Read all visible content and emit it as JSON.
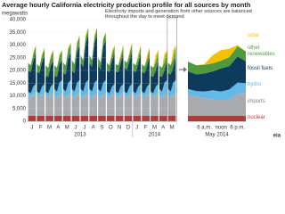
{
  "chart_data": [
    {
      "type": "area",
      "stacked": true,
      "title": "Average hourly California electricity production profile for all sources by month",
      "y_label": "megawatts",
      "annotation": "Electricity imports and generation from other sources are balanced throughout the day to meet demand",
      "year_labels": [
        "2013",
        "2014"
      ],
      "source_logo": "eia",
      "categories": [
        null,
        "J",
        null,
        null,
        null,
        "F",
        null,
        null,
        null,
        "M",
        null,
        null,
        null,
        "A",
        null,
        null,
        null,
        "M",
        null,
        null,
        null,
        "J",
        null,
        null,
        null,
        "J",
        null,
        null,
        null,
        "A",
        null,
        null,
        null,
        "S",
        null,
        null,
        null,
        "O",
        null,
        null,
        null,
        "N",
        null,
        null,
        null,
        "D",
        null,
        null,
        null,
        "J",
        null,
        null,
        null,
        "F",
        null,
        null,
        null,
        "M",
        null,
        null,
        null,
        "A",
        null,
        null,
        null,
        "M",
        null,
        null
      ],
      "series": [
        {
          "color": "#b23a3a",
          "values": [
            2200,
            2200,
            2200,
            2200,
            2200,
            2200,
            2200,
            2200,
            2200,
            2200,
            2200,
            2200,
            2200,
            2200,
            2200,
            2200,
            2200,
            2200,
            2200,
            2200,
            2200,
            2200,
            2200,
            2200,
            2200,
            2200,
            2200,
            2200,
            2200,
            2200,
            2200,
            2200,
            2200,
            2200,
            2200,
            2200,
            2200,
            2200,
            2200,
            2200,
            2200,
            2200,
            2200,
            2200,
            2200,
            2200,
            2200,
            2200,
            2200,
            2200,
            2200,
            2200,
            2200,
            2200,
            2200,
            2200,
            2200,
            2200,
            2200,
            2200,
            2200,
            2200,
            2200,
            2200,
            2200,
            2200,
            2200,
            2200
          ]
        },
        {
          "color": "#a8aaad",
          "values": [
            7500,
            7000,
            8500,
            9000,
            7500,
            7000,
            8500,
            9000,
            7500,
            7000,
            8500,
            9000,
            7500,
            7000,
            8500,
            9000,
            7500,
            7000,
            8500,
            9000,
            7500,
            7000,
            8500,
            9000,
            7500,
            7000,
            8500,
            9000,
            7500,
            7000,
            8500,
            9000,
            7500,
            7000,
            8500,
            9000,
            7500,
            7000,
            8500,
            9000,
            7500,
            7000,
            8500,
            9000,
            7500,
            7000,
            8500,
            9000,
            7500,
            7000,
            8500,
            9000,
            7500,
            7000,
            8500,
            9000,
            7500,
            7000,
            8500,
            9000,
            7500,
            7000,
            8500,
            9000,
            7500,
            7000,
            8500,
            9000
          ]
        },
        {
          "color": "#62b8e6",
          "values": [
            2000,
            1800,
            3000,
            3500,
            2000,
            1800,
            3000,
            3500,
            2000,
            1800,
            3000,
            3500,
            3000,
            2500,
            4500,
            5000,
            3000,
            2500,
            4500,
            5000,
            3000,
            2500,
            4500,
            5000,
            3000,
            2500,
            4500,
            5000,
            3000,
            2500,
            4500,
            5000,
            3000,
            2500,
            4500,
            5000,
            2000,
            1800,
            3000,
            3500,
            2000,
            1800,
            3000,
            3500,
            2000,
            1800,
            3000,
            3500,
            2000,
            1800,
            3000,
            3500,
            2000,
            1800,
            3000,
            3500,
            2000,
            1800,
            3000,
            3500,
            3000,
            2500,
            4500,
            5000,
            3000,
            2500,
            4500,
            5000
          ]
        },
        {
          "color": "#0d3b5e",
          "values": [
            8300,
            8300,
            10000,
            12100,
            7800,
            7800,
            9500,
            11100,
            6300,
            6400,
            8300,
            9100,
            5300,
            5700,
            7300,
            7600,
            6300,
            6700,
            9800,
            10600,
            7300,
            7200,
            11800,
            13600,
            10300,
            9600,
            15500,
            17600,
            10300,
            9600,
            15500,
            17600,
            9300,
            8600,
            14500,
            15600,
            8300,
            8300,
            10100,
            12100,
            7800,
            8300,
            9100,
            12100,
            9300,
            9300,
            10100,
            13100,
            8300,
            8300,
            8800,
            12100,
            7800,
            7800,
            7800,
            11000,
            6300,
            6400,
            6300,
            8900,
            5300,
            5700,
            4900,
            7300,
            6300,
            6700,
            6100,
            9300
          ]
        },
        {
          "color": "#4e9a3c",
          "values": [
            3000,
            2700,
            2500,
            3000,
            3000,
            2700,
            2500,
            3000,
            4000,
            3600,
            3200,
            4000,
            4000,
            3600,
            3200,
            4000,
            4000,
            3600,
            3200,
            4000,
            4000,
            3600,
            3200,
            4000,
            3000,
            2700,
            2500,
            3000,
            3000,
            2700,
            2500,
            3000,
            3000,
            2700,
            2500,
            3000,
            3000,
            2700,
            2500,
            3000,
            3000,
            2700,
            2500,
            3000,
            3000,
            2700,
            2500,
            3000,
            3000,
            2700,
            2500,
            3000,
            3000,
            2700,
            2500,
            3000,
            4000,
            3600,
            3200,
            4000,
            4000,
            3600,
            3200,
            4000,
            4000,
            3600,
            3200,
            4000
          ]
        },
        {
          "color": "#f2c200",
          "values": [
            0,
            0,
            800,
            200,
            0,
            0,
            800,
            200,
            0,
            0,
            800,
            200,
            0,
            0,
            800,
            200,
            0,
            0,
            800,
            200,
            0,
            0,
            800,
            200,
            0,
            0,
            800,
            200,
            0,
            0,
            800,
            200,
            0,
            0,
            800,
            200,
            0,
            0,
            1200,
            200,
            0,
            0,
            1200,
            200,
            0,
            0,
            1200,
            200,
            0,
            0,
            1500,
            200,
            0,
            0,
            2000,
            300,
            0,
            0,
            2800,
            400,
            0,
            0,
            3200,
            500,
            0,
            0,
            3500,
            500
          ]
        }
      ],
      "ylim": [
        0,
        40000
      ],
      "yticks": [
        0,
        {
          "value": 5000,
          "label": "5,000"
        },
        {
          "value": 10000,
          "label": "10,000"
        },
        {
          "value": 15000,
          "label": "15,000"
        },
        {
          "value": 20000,
          "label": "20,000"
        },
        {
          "value": 25000,
          "label": "25,000"
        },
        {
          "value": 30000,
          "label": "30,000"
        },
        {
          "value": 35000,
          "label": "35,000"
        },
        {
          "value": 40000,
          "label": "40,000"
        }
      ],
      "grid": true
    },
    {
      "type": "area",
      "stacked": true,
      "x_label": "May 2014",
      "categories": [
        null,
        null,
        "6 a.m.",
        null,
        "noon",
        null,
        "6 p.m.",
        null
      ],
      "series": [
        {
          "name": "nuclear",
          "color": "#b23a3a",
          "values": [
            2200,
            2200,
            2200,
            2200,
            2200,
            2200,
            2200,
            2200
          ]
        },
        {
          "name": "imports",
          "color": "#a8aaad",
          "values": [
            8000,
            7500,
            7000,
            6500,
            6000,
            6500,
            8500,
            9000
          ]
        },
        {
          "name": "hydro",
          "color": "#62b8e6",
          "values": [
            2500,
            2200,
            2500,
            3500,
            3500,
            3800,
            4500,
            3800
          ]
        },
        {
          "name": "fossil fuels",
          "color": "#0d3b5e",
          "values": [
            7000,
            6500,
            7100,
            7400,
            9100,
            9200,
            10300,
            8600
          ]
        },
        {
          "name": "other renewables",
          "color": "#4e9a3c",
          "values": [
            3800,
            3600,
            3400,
            3200,
            3000,
            3500,
            4000,
            3900
          ]
        },
        {
          "name": "solar",
          "color": "#f2c200",
          "values": [
            0,
            0,
            300,
            3200,
            4200,
            3300,
            500,
            0
          ]
        }
      ],
      "ylim": [
        0,
        40000
      ]
    }
  ]
}
